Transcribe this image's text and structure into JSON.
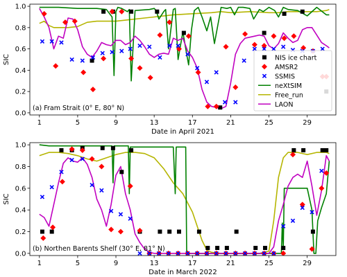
{
  "chart_data": [
    {
      "type": "line",
      "panel_label": "(a) Fram Strait (0° E, 80° N)",
      "xlabel": "Date in April 2021",
      "ylabel": "SIC",
      "xlim": [
        0,
        32
      ],
      "ylim": [
        -0.02,
        1.02
      ],
      "xticks": [
        1,
        5,
        9,
        13,
        17,
        21,
        25,
        29
      ],
      "yticks": [
        0.0,
        0.2,
        0.4,
        0.6,
        0.8,
        1.0
      ],
      "ytick_labels": [
        "0.0",
        "0.2",
        "0.4",
        "0.6",
        "0.8",
        "1.0"
      ],
      "grid": false,
      "legend": {
        "position": "lower-right",
        "entries": [
          "NIS ice chart",
          "AMSR2",
          "SSMIS",
          "neXtSIM",
          "Free_run",
          "LAON"
        ]
      },
      "series": [
        {
          "name": "NIS ice chart",
          "kind": "marker",
          "marker": "square",
          "color": "#000000",
          "x": [
            6.5,
            7.7,
            8.7,
            10.6,
            13.3,
            16.1,
            19.9,
            24.5,
            26.6,
            28.5,
            31.0
          ],
          "y": [
            0.49,
            0.95,
            0.95,
            0.95,
            0.95,
            0.75,
            0.05,
            0.75,
            0.93,
            0.95,
            0.2
          ]
        },
        {
          "name": "AMSR2",
          "kind": "marker",
          "marker": "diamond",
          "color": "#ff0000",
          "x": [
            1.5,
            2.7,
            3.7,
            4.7,
            5.6,
            6.6,
            7.7,
            8.6,
            9.6,
            10.6,
            11.5,
            12.6,
            13.6,
            14.6,
            15.6,
            16.6,
            17.6,
            18.6,
            19.5,
            20.5,
            21.5,
            22.5,
            23.5,
            24.5,
            25.5,
            26.6,
            27.6,
            28.6,
            29.6,
            30.6,
            31.0
          ],
          "y": [
            0.93,
            0.44,
            0.85,
            0.86,
            0.38,
            0.22,
            0.51,
            0.95,
            0.95,
            0.51,
            0.42,
            0.33,
            0.73,
            0.85,
            0.6,
            0.72,
            0.38,
            0.06,
            0.06,
            0.62,
            0.24,
            0.74,
            0.64,
            0.63,
            0.72,
            0.7,
            0.72,
            0.61,
            0.58,
            0.34,
            0.34
          ]
        },
        {
          "name": "SSMIS",
          "kind": "marker",
          "marker": "x",
          "color": "#0000ff",
          "x": [
            1.3,
            2.3,
            3.3,
            4.4,
            5.5,
            6.6,
            7.6,
            8.6,
            9.6,
            10.5,
            11.5,
            12.5,
            13.6,
            14.6,
            15.5,
            16.5,
            17.5,
            18.5,
            19.5,
            20.4,
            21.5,
            22.4,
            23.5,
            24.5,
            25.5,
            26.5,
            27.5,
            28.5,
            29.6,
            30.6
          ],
          "y": [
            0.67,
            0.67,
            0.66,
            0.5,
            0.49,
            0.52,
            0.56,
            0.57,
            0.58,
            0.6,
            0.63,
            0.62,
            0.52,
            0.63,
            0.63,
            0.55,
            0.42,
            0.29,
            0.38,
            0.1,
            0.1,
            0.49,
            0.6,
            0.6,
            0.6,
            0.62,
            0.59,
            0.58,
            0.58,
            0.6
          ]
        },
        {
          "name": "neXtSIM",
          "kind": "line",
          "color": "#008000",
          "x": [
            1,
            3,
            5,
            7,
            8,
            8.6,
            8.8,
            9,
            9.2,
            9.6,
            10.2,
            10.4,
            10.6,
            11,
            12.5,
            13,
            13.2,
            13.5,
            14,
            14.2,
            14.5,
            15,
            15.2,
            15.5,
            16,
            16.4,
            16.6,
            16.9,
            17.2,
            17.6,
            18,
            18.5,
            18.9,
            19.3,
            20,
            20.6,
            21,
            21.4,
            21.8,
            22.3,
            23,
            23.4,
            24,
            24.4,
            25,
            25.6,
            26,
            26.5,
            27,
            28,
            29,
            30,
            31,
            31.3
          ],
          "y": [
            0.99,
            0.99,
            0.98,
            0.98,
            0.97,
            0.9,
            0.35,
            0.95,
            0.99,
            0.98,
            0.95,
            0.97,
            0.3,
            0.96,
            0.97,
            0.98,
            0.96,
            0.88,
            0.95,
            0.97,
            0.6,
            0.97,
            0.98,
            0.5,
            0.76,
            0.55,
            0.45,
            0.78,
            0.96,
            0.99,
            0.9,
            0.77,
            0.9,
            0.65,
            0.99,
            0.98,
            0.99,
            0.92,
            0.99,
            0.99,
            0.98,
            0.88,
            0.97,
            0.95,
            0.99,
            0.96,
            0.9,
            0.99,
            0.97,
            0.96,
            0.91,
            0.99,
            0.92,
            0.92
          ]
        },
        {
          "name": "Free_run",
          "kind": "line",
          "color": "#b5b500",
          "x": [
            1,
            1.5,
            2,
            2.5,
            3,
            4,
            5,
            6,
            7,
            8,
            9,
            10,
            12,
            13,
            15,
            17,
            19,
            20,
            21,
            23,
            25,
            26,
            27,
            28,
            29,
            30,
            31,
            31.3
          ],
          "y": [
            0.84,
            0.86,
            0.82,
            0.8,
            0.8,
            0.8,
            0.81,
            0.85,
            0.86,
            0.86,
            0.86,
            0.87,
            0.89,
            0.9,
            0.92,
            0.93,
            0.94,
            0.95,
            0.94,
            0.95,
            0.94,
            0.94,
            0.95,
            0.95,
            0.95,
            0.95,
            0.96,
            0.97
          ]
        },
        {
          "name": "LAON",
          "kind": "line",
          "color": "#c000c0",
          "x": [
            1,
            1.5,
            2,
            2.5,
            3,
            3.5,
            4,
            4.5,
            5,
            5.5,
            6,
            6.5,
            7,
            7.5,
            8,
            8.5,
            9,
            9.5,
            10,
            10.5,
            11,
            11.5,
            12,
            12.5,
            13,
            13.5,
            14,
            14.5,
            15,
            15.5,
            16,
            16.5,
            17,
            17.5,
            18,
            18.5,
            19,
            19.5,
            20,
            20.5,
            21,
            21.5,
            22,
            22.5,
            23,
            23.5,
            24,
            24.5,
            25,
            25.5,
            26,
            26.5,
            27,
            27.5,
            28,
            28.5,
            29,
            29.5,
            30,
            30.5,
            31,
            31.3
          ],
          "y": [
            0.98,
            0.9,
            0.8,
            0.6,
            0.72,
            0.7,
            0.89,
            0.88,
            0.78,
            0.62,
            0.55,
            0.52,
            0.58,
            0.66,
            0.64,
            0.63,
            0.68,
            0.68,
            0.64,
            0.66,
            0.72,
            0.68,
            0.62,
            0.55,
            0.52,
            0.55,
            0.56,
            0.55,
            0.7,
            0.68,
            0.7,
            0.58,
            0.52,
            0.42,
            0.22,
            0.1,
            0.06,
            0.05,
            0.04,
            0.06,
            0.28,
            0.55,
            0.65,
            0.7,
            0.71,
            0.72,
            0.73,
            0.72,
            0.63,
            0.6,
            0.65,
            0.75,
            0.7,
            0.66,
            0.68,
            0.78,
            0.8,
            0.8,
            0.73,
            0.66,
            0.63,
            0.61
          ]
        }
      ]
    },
    {
      "type": "line",
      "panel_label": "(b) Northen Barents Shelf (30° E, 81° N)",
      "xlabel": "Date in March 2022",
      "ylabel": "SIC",
      "xlim": [
        0,
        32
      ],
      "ylim": [
        -0.02,
        1.02
      ],
      "xticks": [
        1,
        5,
        9,
        13,
        17,
        21,
        25,
        29
      ],
      "yticks": [
        0.0,
        0.2,
        0.4,
        0.6,
        0.8,
        1.0
      ],
      "ytick_labels": [
        "0.0",
        "0.2",
        "0.4",
        "0.6",
        "0.8",
        "1.0"
      ],
      "grid": false,
      "legend": {
        "position": "none",
        "entries": []
      },
      "series": [
        {
          "name": "NIS ice chart",
          "kind": "marker",
          "marker": "square",
          "color": "#000000",
          "x": [
            1.3,
            2.3,
            3.3,
            4.4,
            5.5,
            7.6,
            8.7,
            9.6,
            10.6,
            11.5,
            13.6,
            14.6,
            15.6,
            17.7,
            18.6,
            19.6,
            20.6,
            21.6,
            23.6,
            24.6,
            26.5,
            27.6,
            28.6,
            29.6,
            30.6,
            31.0
          ],
          "y": [
            0.2,
            0.2,
            0.95,
            0.95,
            0.97,
            0.97,
            0.97,
            0.75,
            0.95,
            0.2,
            0.2,
            0.2,
            0.2,
            0.2,
            0.05,
            0.05,
            0.05,
            0.2,
            0.05,
            0.05,
            0.05,
            0.95,
            0.95,
            0.2,
            0.95,
            0.95
          ]
        },
        {
          "name": "AMSR2",
          "kind": "marker",
          "marker": "diamond",
          "color": "#ff0000",
          "x": [
            1.4,
            2.4,
            3.4,
            4.4,
            5.5,
            6.5,
            7.5,
            8.5,
            9.5,
            10.5,
            11.5,
            12.5,
            13.5,
            14.5,
            15.5,
            16.5,
            17.5,
            18.5,
            19.5,
            20.5,
            21.5,
            22.5,
            23.5,
            24.5,
            25.5,
            26.5,
            27.5,
            28.5,
            29.5,
            30.5,
            31.0
          ],
          "y": [
            0.14,
            0.24,
            0.66,
            0.96,
            0.95,
            0.87,
            0.8,
            0.22,
            0.2,
            0.62,
            0.21,
            0.0,
            0.0,
            0.0,
            0.0,
            0.0,
            0.0,
            0.0,
            0.0,
            0.0,
            0.0,
            0.0,
            0.0,
            0.0,
            0.0,
            0.0,
            0.91,
            0.45,
            0.04,
            0.6,
            0.74
          ]
        },
        {
          "name": "SSMIS",
          "kind": "marker",
          "marker": "x",
          "color": "#0000ff",
          "x": [
            1.3,
            2.3,
            3.3,
            4.4,
            5.5,
            6.5,
            7.5,
            8.5,
            9.5,
            10.5,
            11.5,
            12.5,
            13.5,
            14.5,
            15.5,
            16.5,
            17.5,
            18.5,
            19.5,
            20.5,
            21.5,
            22.5,
            23.5,
            24.5,
            25.5,
            26.5,
            27.5,
            28.5,
            29.5,
            30.5
          ],
          "y": [
            0.52,
            0.61,
            0.75,
            0.86,
            0.87,
            0.63,
            0.58,
            0.39,
            0.36,
            0.32,
            0.0,
            0.0,
            0.0,
            0.0,
            0.0,
            0.0,
            0.0,
            0.0,
            0.0,
            0.0,
            0.0,
            0.0,
            0.0,
            0.0,
            0.0,
            0.25,
            0.3,
            0.42,
            0.38,
            0.76
          ]
        },
        {
          "name": "neXtSIM",
          "kind": "line",
          "color": "#008000",
          "x": [
            1,
            2,
            3,
            4,
            5,
            6,
            7,
            8,
            8.6,
            8.7,
            8.8,
            9.6,
            10,
            10.3,
            10.4,
            10.5,
            11,
            12,
            13,
            14,
            15,
            15.2,
            15.3,
            15.5,
            16.3,
            16.4,
            16.5,
            17,
            18,
            19,
            20,
            21,
            22,
            23,
            24,
            25,
            25.5,
            26,
            26.3,
            26.4,
            26.5,
            26.6,
            27,
            28,
            29,
            29.5,
            29.7,
            29.9,
            30.1,
            30.5,
            31,
            31.3
          ],
          "y": [
            1.0,
            0.99,
            0.99,
            0.99,
            0.99,
            0.99,
            0.99,
            0.99,
            0.99,
            0.65,
            0.99,
            0.99,
            0.99,
            0.99,
            0.55,
            0.98,
            0.98,
            0.98,
            0.98,
            0.98,
            0.98,
            0.55,
            0.98,
            0.98,
            0.98,
            0.0,
            0.0,
            0.0,
            0.0,
            0.0,
            0.0,
            0.0,
            0.0,
            0.0,
            0.0,
            0.0,
            0.0,
            0.0,
            0.0,
            0.28,
            0.05,
            0.6,
            0.6,
            0.6,
            0.6,
            0.4,
            0.0,
            0.0,
            0.3,
            0.42,
            0.55,
            0.85
          ]
        },
        {
          "name": "Free_run",
          "kind": "line",
          "color": "#b5b500",
          "x": [
            1,
            2,
            3,
            4,
            5,
            6,
            7,
            8,
            9,
            10,
            11,
            12,
            13,
            14,
            15,
            16,
            17,
            17.5,
            18,
            18.5,
            19,
            20,
            21,
            22,
            23,
            24,
            25,
            25.5,
            26,
            26.5,
            27,
            28,
            29,
            30,
            31,
            31.3
          ],
          "y": [
            0.9,
            0.93,
            0.93,
            0.92,
            0.9,
            0.87,
            0.85,
            0.88,
            0.91,
            0.93,
            0.93,
            0.92,
            0.88,
            0.78,
            0.65,
            0.55,
            0.38,
            0.25,
            0.12,
            0.03,
            0.01,
            0.0,
            0.0,
            0.0,
            0.0,
            0.0,
            0.02,
            0.3,
            0.7,
            0.88,
            0.93,
            0.93,
            0.91,
            0.93,
            0.93,
            0.92
          ]
        },
        {
          "name": "LAON",
          "kind": "line",
          "color": "#c000c0",
          "x": [
            1,
            1.5,
            2,
            2.5,
            3,
            3.5,
            4,
            4.5,
            5,
            5.5,
            6,
            6.5,
            7,
            7.5,
            8,
            8.5,
            9,
            9.5,
            10,
            10.5,
            11,
            11.5,
            12,
            12.5,
            13,
            14,
            15,
            16,
            17,
            18,
            19,
            20,
            21,
            22,
            23,
            24,
            25,
            25.5,
            26,
            26.5,
            27,
            27.5,
            28,
            28.5,
            29,
            29.5,
            30,
            30.5,
            31,
            31.3
          ],
          "y": [
            0.36,
            0.33,
            0.25,
            0.45,
            0.65,
            0.83,
            0.88,
            0.85,
            0.84,
            0.88,
            0.82,
            0.7,
            0.5,
            0.4,
            0.25,
            0.45,
            0.72,
            0.8,
            0.55,
            0.4,
            0.18,
            0.1,
            0.04,
            0.01,
            0.0,
            0.0,
            0.0,
            0.0,
            0.0,
            0.0,
            0.0,
            0.0,
            0.0,
            0.0,
            0.0,
            0.0,
            0.0,
            0.06,
            0.3,
            0.45,
            0.62,
            0.7,
            0.73,
            0.7,
            0.85,
            0.62,
            0.35,
            0.58,
            0.9,
            0.85
          ]
        }
      ]
    }
  ]
}
